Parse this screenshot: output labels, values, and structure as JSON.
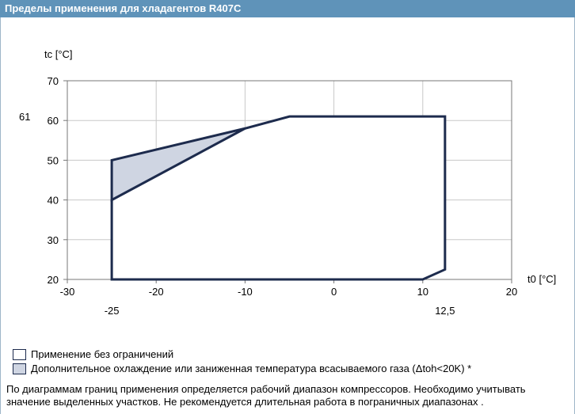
{
  "header": {
    "title": "Пределы применения для хладагентов R407C"
  },
  "chart_data": {
    "type": "area",
    "xlabel": "t0 [°C]",
    "ylabel": "tc [°C]",
    "xlim": [
      -30,
      20
    ],
    "ylim": [
      20,
      70
    ],
    "xticks": [
      -30,
      -20,
      -10,
      0,
      10,
      20
    ],
    "yticks": [
      20,
      30,
      40,
      50,
      60,
      70
    ],
    "grid": true,
    "extra_x_labels": [
      {
        "value": -25,
        "text": "-25"
      },
      {
        "value": 12.5,
        "text": "12,5"
      }
    ],
    "extra_y_labels": [
      {
        "value": 61,
        "text": "61"
      }
    ],
    "series": [
      {
        "name": "Применение без ограничений",
        "fill": "#ffffff",
        "x": [
          -25,
          -25,
          -10,
          -5,
          12.5,
          12.5,
          10,
          -25
        ],
        "y": [
          20,
          40,
          58,
          61,
          61,
          22.5,
          20,
          20
        ]
      },
      {
        "name": "Дополнительное охлаждение или заниженная температура всасываемого газа (Δtoh<20K) *",
        "fill": "#cfd5e2",
        "x": [
          -25,
          -25,
          -10
        ],
        "y": [
          40,
          50,
          58
        ]
      }
    ],
    "colors": {
      "outline": "#1d2b4d",
      "grid": "#c8c8c8",
      "axis": "#777777"
    }
  },
  "legend": [
    {
      "label": "Применение без ограничений",
      "color": "#ffffff"
    },
    {
      "label": "Дополнительное охлаждение или заниженная температура всасываемого газа (Δtoh<20K) *",
      "color": "#cfd5e2"
    }
  ],
  "note": "По диаграммам границ применения определяется рабочий диапазон компрессоров. Необходимо учитывать значение выделенных участков. Не рекомендуется длительная работа в пограничных диапазонах ."
}
